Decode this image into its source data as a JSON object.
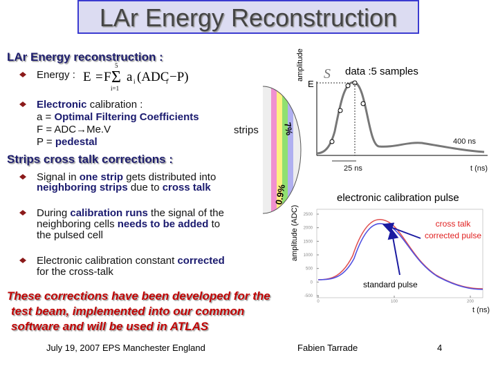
{
  "title": "LAr Energy Reconstruction",
  "energy": {
    "heading": "LAr Energy reconstruction :",
    "label": "Energy :",
    "formula": {
      "e": "E",
      "eq": "=",
      "f": "F",
      "sum": "Σ",
      "top": "5",
      "bottom": "i=1",
      "a": "a",
      "i1": "i",
      "adc": "(ADC",
      "i2": "i",
      "rest": "−P)"
    },
    "calibration": [
      [
        {
          "text": "Electronic",
          "bold": true
        },
        {
          "text": " calibration :"
        }
      ],
      [
        {
          "text": "a = "
        },
        {
          "text": "Optimal Filtering Coefficients",
          "bold": true
        }
      ],
      [
        {
          "text": "F = ADC→Me.V"
        }
      ],
      [
        {
          "text": "P = "
        },
        {
          "text": "pedestal",
          "bold": true
        }
      ]
    ]
  },
  "crosstalk": {
    "heading": "Strips cross talk corrections :",
    "bullets": [
      [
        [
          {
            "text": "Signal in "
          },
          {
            "text": "one strip",
            "bold": true
          },
          {
            "text": " gets distributed into"
          }
        ],
        [
          {
            "text": "neighboring strips",
            "bold": true
          },
          {
            "text": " due to "
          },
          {
            "text": "cross talk",
            "bold": true
          }
        ]
      ],
      [
        [
          {
            "text": "During "
          },
          {
            "text": "calibration runs",
            "bold": true
          },
          {
            "text": " the signal of the"
          }
        ],
        [
          {
            "text": "neighboring cells "
          },
          {
            "text": "needs to be added",
            "bold": true
          },
          {
            "text": " to"
          }
        ],
        [
          {
            "text": "the pulsed cell"
          }
        ]
      ],
      [
        [
          {
            "text": "Electronic calibration constant "
          },
          {
            "text": "corrected",
            "bold": true
          }
        ],
        [
          {
            "text": "for the cross-talk"
          }
        ]
      ]
    ]
  },
  "conclusion": [
    "These corrections have been developed for the",
    "test beam, implemented into our common",
    "software and will be used in ATLAS"
  ],
  "strips": {
    "label": "strips",
    "near": "7%",
    "far": "0.9%"
  },
  "samples_plot": {
    "y_label": "amplitude",
    "s": "S",
    "caption": "data :5 samples",
    "e": "E",
    "width": "400 ns",
    "step": "25 ns",
    "x_label": "t (ns)"
  },
  "pulse_plot": {
    "title": "electronic calibration pulse",
    "y_label": "amplitude (ADC)",
    "corrected": [
      "cross talk",
      "corrected pulse"
    ],
    "standard": "standard pulse",
    "x_label": "t (ns)",
    "yticks": [
      2500,
      2000,
      1500,
      1000,
      500,
      0,
      -500
    ],
    "xticks": [
      0,
      100,
      200
    ]
  },
  "footer": {
    "date": "July 19, 2007  EPS Manchester England",
    "author": "Fabien Tarrade",
    "page": 4
  }
}
